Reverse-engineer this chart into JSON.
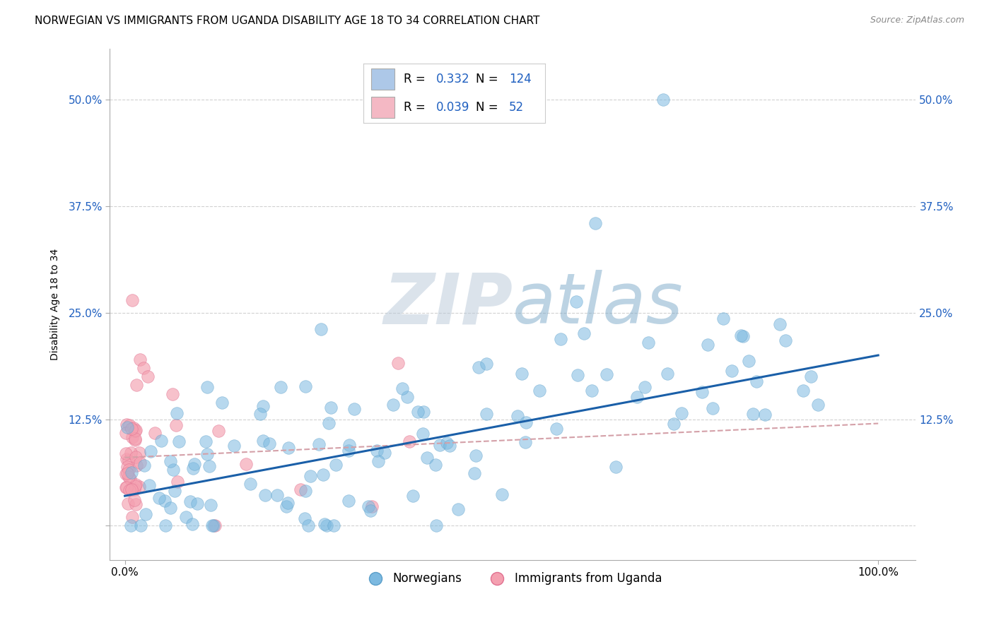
{
  "title": "NORWEGIAN VS IMMIGRANTS FROM UGANDA DISABILITY AGE 18 TO 34 CORRELATION CHART",
  "source": "Source: ZipAtlas.com",
  "ylabel": "Disability Age 18 to 34",
  "xlabel": "",
  "xlim": [
    -0.02,
    1.05
  ],
  "ylim": [
    -0.04,
    0.56
  ],
  "xticks": [
    0.0,
    1.0
  ],
  "xticklabels": [
    "0.0%",
    "100.0%"
  ],
  "yticks": [
    0.0,
    0.125,
    0.25,
    0.375,
    0.5
  ],
  "yticklabels": [
    "",
    "12.5%",
    "25.0%",
    "37.5%",
    "50.0%"
  ],
  "norwegian_color": "#7cb9e0",
  "norwegian_edge": "#5a9ec9",
  "uganda_color": "#f4a0b0",
  "uganda_edge": "#e07090",
  "trend_norwegian_color": "#1a5fa8",
  "trend_uganda_color": "#d4a0a8",
  "norwegian_R": 0.332,
  "norwegian_N": 124,
  "uganda_R": 0.039,
  "uganda_N": 52,
  "background_color": "#ffffff",
  "grid_color": "#cccccc",
  "watermark_color": "#d0dce8",
  "title_fontsize": 11,
  "axis_label_fontsize": 10,
  "tick_fontsize": 11,
  "source_fontsize": 9,
  "legend_label_norwegian": "Norwegians",
  "legend_label_uganda": "Immigrants from Uganda",
  "legend_color_nor": "#adc8e8",
  "legend_color_uga": "#f4b8c4",
  "legend_text_color": "#2060c0",
  "ytick_color": "#2060c0"
}
